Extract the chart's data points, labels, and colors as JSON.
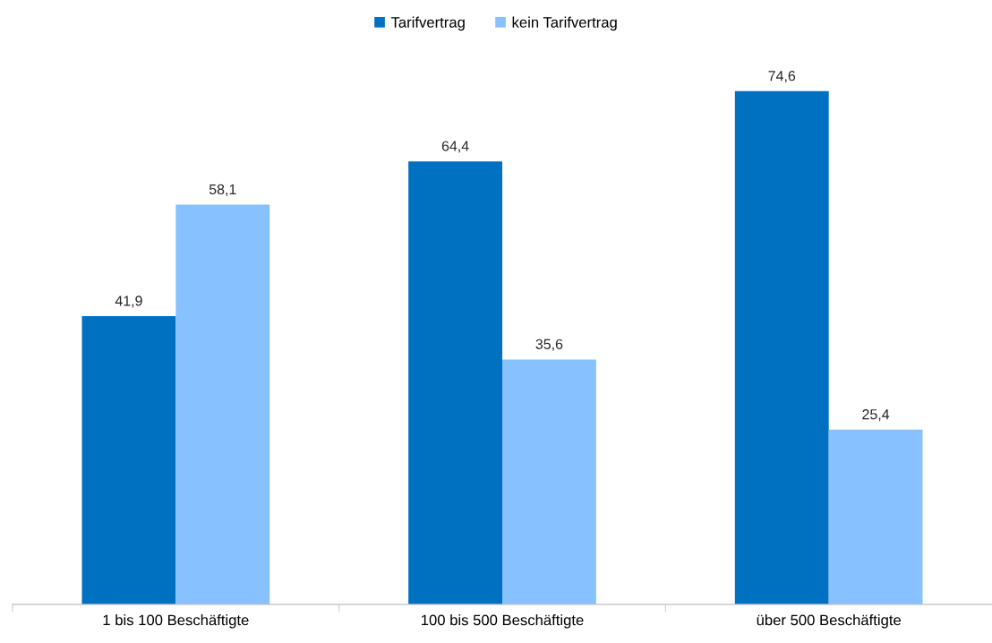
{
  "chart_data": {
    "type": "bar",
    "categories": [
      "1 bis 100 Beschäftigte",
      "100 bis 500 Beschäftigte",
      "über 500 Beschäftigte"
    ],
    "series": [
      {
        "name": "Tarifvertrag",
        "color": "#0070c0",
        "values": [
          41.9,
          64.4,
          74.6
        ],
        "value_labels": [
          "41,9",
          "64,4",
          "74,6"
        ]
      },
      {
        "name": "kein Tarifvertrag",
        "color": "#87c1ff",
        "values": [
          58.1,
          35.6,
          25.4
        ],
        "value_labels": [
          "58,1",
          "35,6",
          "25,4"
        ]
      }
    ],
    "legend": "top"
  }
}
